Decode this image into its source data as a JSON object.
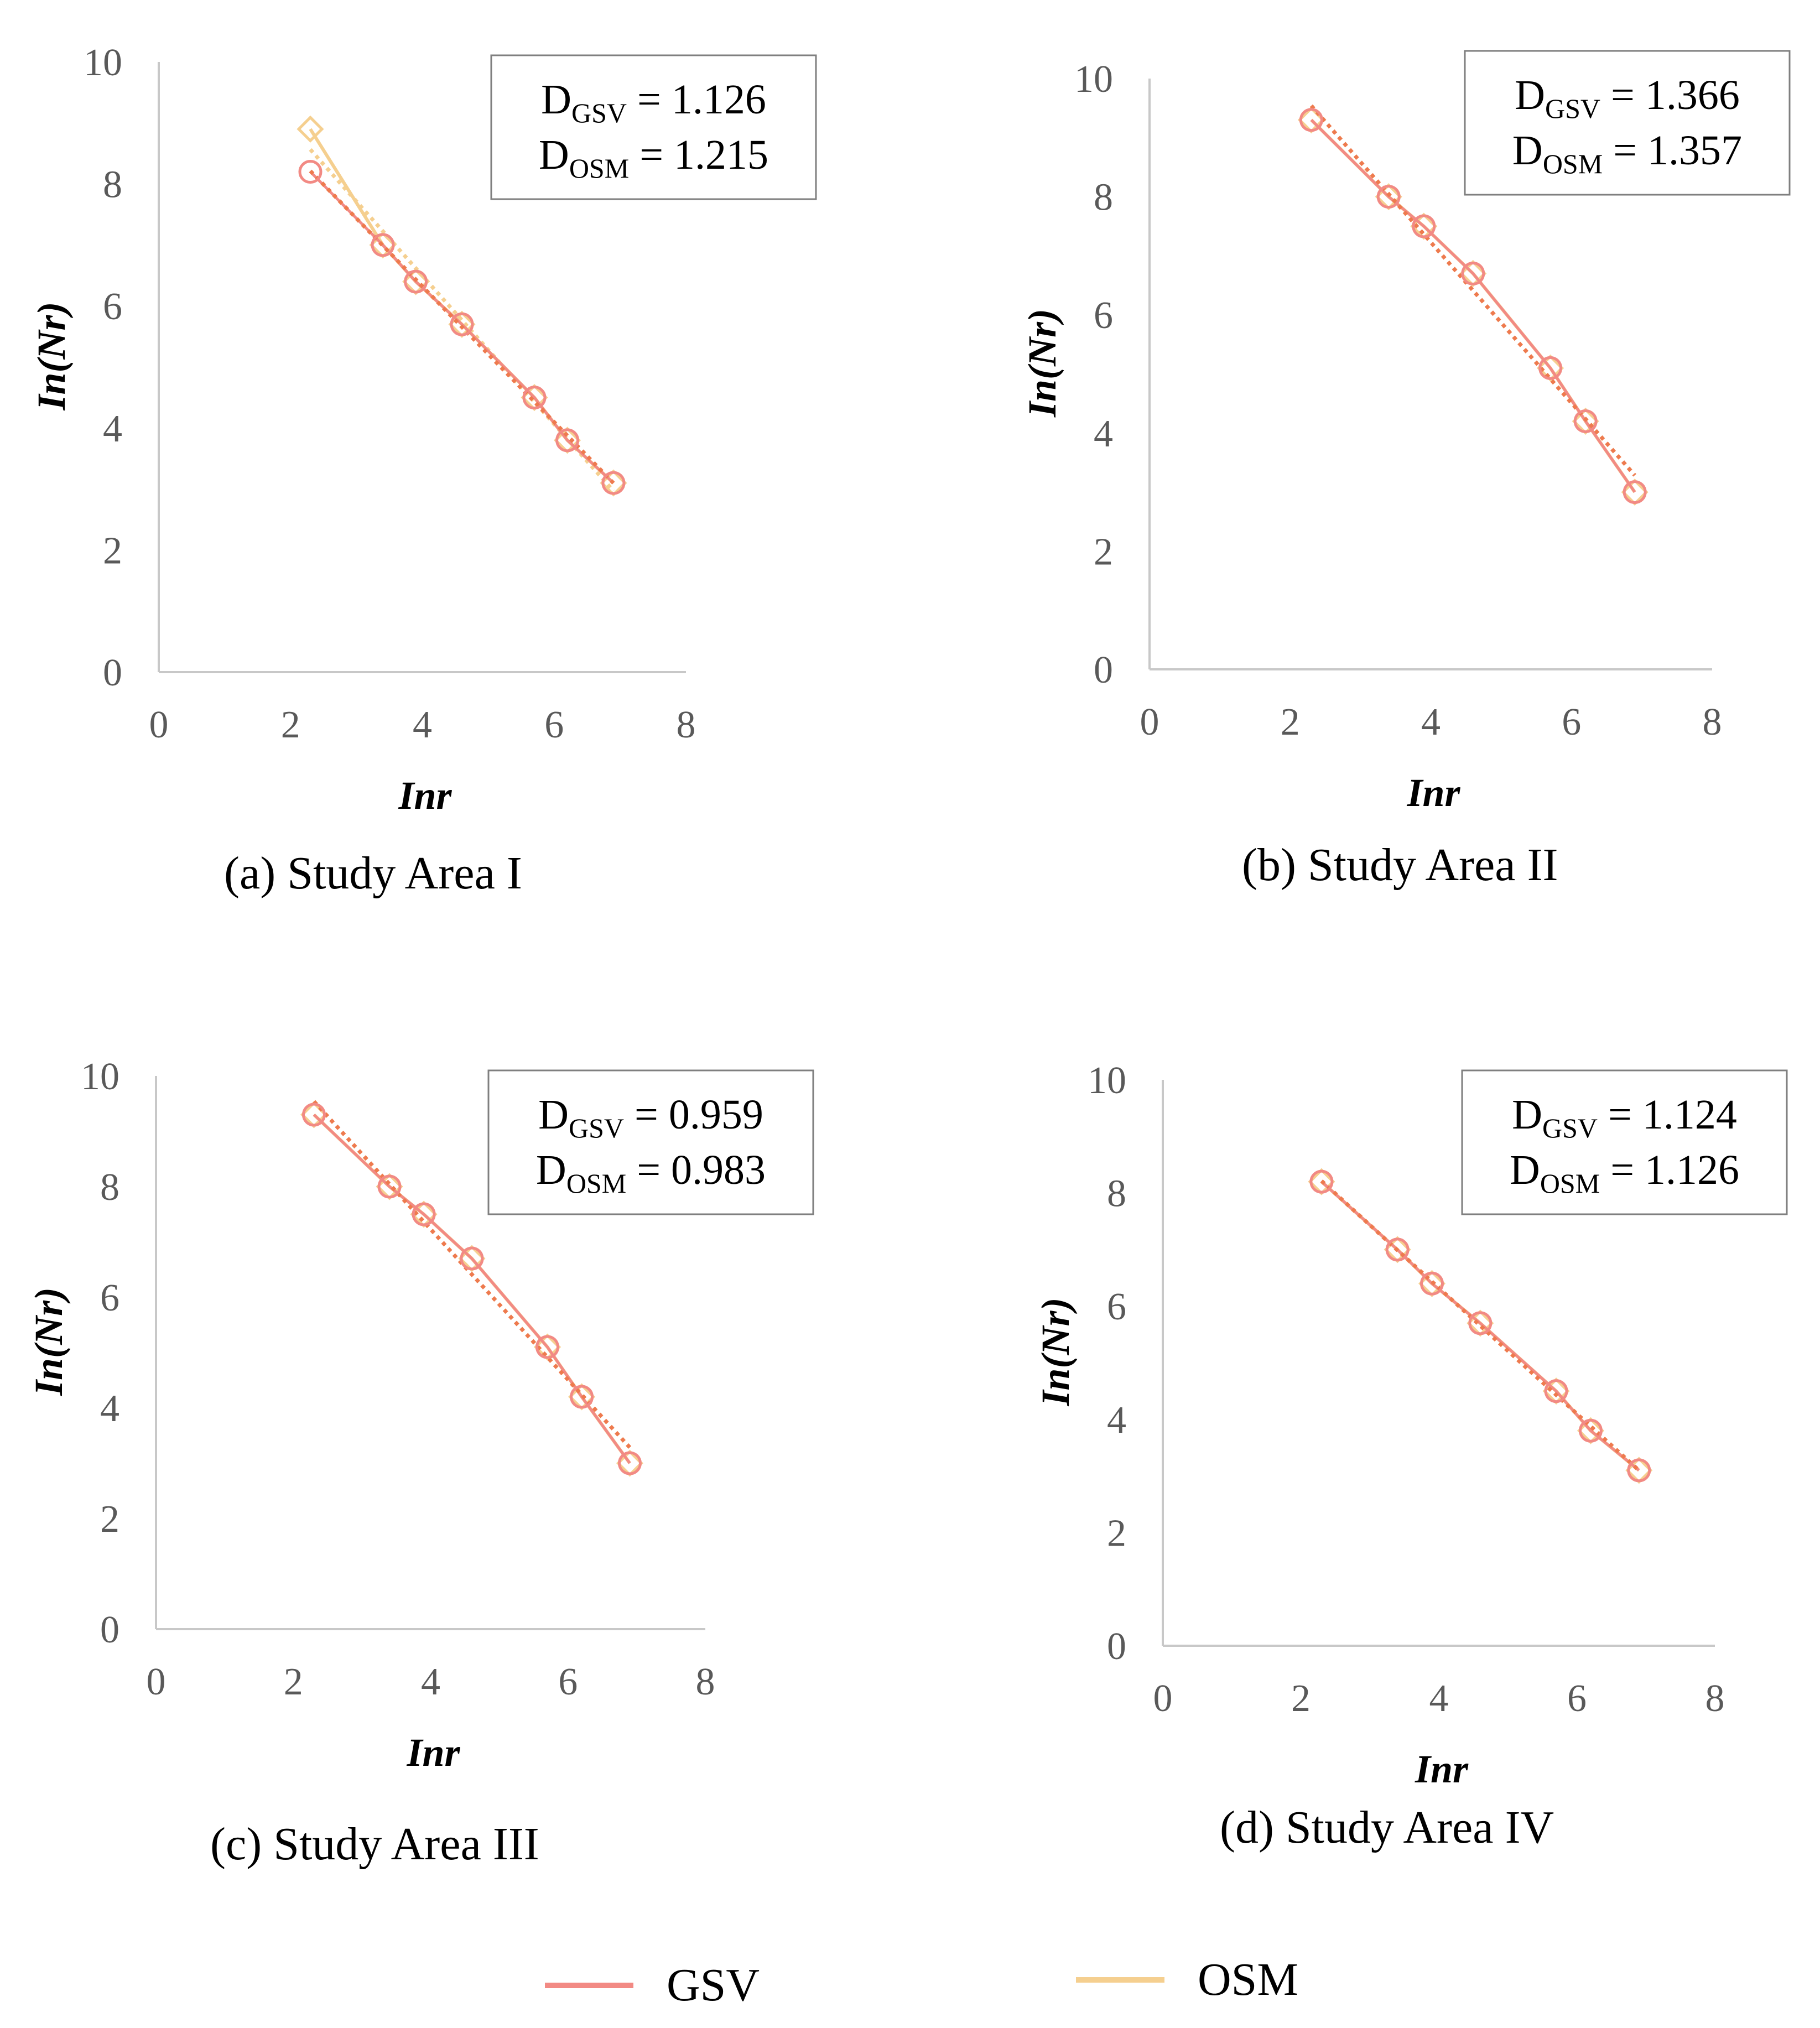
{
  "colors": {
    "gsv": "#f28a84",
    "osm": "#f5cf8f",
    "trend": "#ee7a4e",
    "axis": "#c8c8c8",
    "tick": "#595959",
    "box": "#7f7f7f"
  },
  "legend": {
    "items": [
      {
        "label": "GSV",
        "color": "#f28a84"
      },
      {
        "label": "OSM",
        "color": "#f5cf8f"
      }
    ]
  },
  "chart_data": [
    {
      "type": "scatter",
      "caption": "(a) Study Area I",
      "xlabel": "Inr",
      "ylabel": "In(Nr)",
      "xlim": [
        0,
        8
      ],
      "ylim": [
        0,
        10
      ],
      "xticks": [
        "0",
        "2",
        "4",
        "6",
        "8"
      ],
      "yticks": [
        "0",
        "2",
        "4",
        "6",
        "8",
        "10"
      ],
      "annotation": {
        "gsv": "D_GSV = 1.126",
        "osm": "D_OSM = 1.215",
        "gsv_parts": [
          "D",
          "GSV",
          " = 1.126"
        ],
        "osm_parts": [
          "D",
          "OSM",
          " = 1.215"
        ]
      },
      "series": [
        {
          "name": "GSV",
          "marker": "circle",
          "x": [
            2.3,
            3.4,
            3.9,
            4.6,
            5.7,
            6.2,
            6.9
          ],
          "y": [
            8.2,
            7.0,
            6.4,
            5.7,
            4.5,
            3.8,
            3.1
          ]
        },
        {
          "name": "OSM",
          "marker": "diamond",
          "x": [
            2.3,
            3.4,
            3.9,
            4.6,
            5.7,
            6.2,
            6.9
          ],
          "y": [
            8.9,
            7.0,
            6.4,
            5.7,
            4.5,
            3.8,
            3.1
          ]
        }
      ]
    },
    {
      "type": "scatter",
      "caption": "(b)  Study Area II",
      "xlabel": "Inr",
      "ylabel": "In(Nr)",
      "xlim": [
        0,
        8
      ],
      "ylim": [
        0,
        10
      ],
      "xticks": [
        "0",
        "2",
        "4",
        "6",
        "8"
      ],
      "yticks": [
        "0",
        "2",
        "4",
        "6",
        "8",
        "10"
      ],
      "annotation": {
        "gsv": "D_GSV = 1.366",
        "osm": "D_OSM = 1.357",
        "gsv_parts": [
          "D",
          "GSV",
          " = 1.366"
        ],
        "osm_parts": [
          "D",
          "OSM",
          " = 1.357"
        ]
      },
      "series": [
        {
          "name": "GSV",
          "marker": "circle",
          "x": [
            2.3,
            3.4,
            3.9,
            4.6,
            5.7,
            6.2,
            6.9
          ],
          "y": [
            9.3,
            8.0,
            7.5,
            6.7,
            5.1,
            4.2,
            3.0
          ]
        },
        {
          "name": "OSM",
          "marker": "diamond",
          "x": [
            2.3,
            3.4,
            3.9,
            4.6,
            5.7,
            6.2,
            6.9
          ],
          "y": [
            9.3,
            8.0,
            7.5,
            6.7,
            5.1,
            4.2,
            3.0
          ]
        }
      ]
    },
    {
      "type": "scatter",
      "caption": "(c)  Study Area III",
      "xlabel": "Inr",
      "ylabel": "In(Nr)",
      "xlim": [
        0,
        8
      ],
      "ylim": [
        0,
        10
      ],
      "xticks": [
        "0",
        "2",
        "4",
        "6",
        "8"
      ],
      "yticks": [
        "0",
        "2",
        "4",
        "6",
        "8",
        "10"
      ],
      "annotation": {
        "gsv": "D_GSV = 0.959",
        "osm": "D_OSM = 0.983",
        "gsv_parts": [
          "D",
          "GSV",
          " = 0.959"
        ],
        "osm_parts": [
          "D",
          "OSM",
          " = 0.983"
        ]
      },
      "series": [
        {
          "name": "GSV",
          "marker": "circle",
          "x": [
            2.3,
            3.4,
            3.9,
            4.6,
            5.7,
            6.2,
            6.9
          ],
          "y": [
            9.3,
            8.0,
            7.5,
            6.7,
            5.1,
            4.2,
            3.0
          ]
        },
        {
          "name": "OSM",
          "marker": "diamond",
          "x": [
            2.3,
            3.4,
            3.9,
            4.6,
            5.7,
            6.2,
            6.9
          ],
          "y": [
            9.3,
            8.0,
            7.5,
            6.7,
            5.1,
            4.2,
            3.0
          ]
        }
      ]
    },
    {
      "type": "scatter",
      "caption": "(d)  Study Area IV",
      "xlabel": "Inr",
      "ylabel": "In(Nr)",
      "xlim": [
        0,
        8
      ],
      "ylim": [
        0,
        10
      ],
      "xticks": [
        "0",
        "2",
        "4",
        "6",
        "8"
      ],
      "yticks": [
        "0",
        "2",
        "4",
        "6",
        "8",
        "10"
      ],
      "annotation": {
        "gsv": "D_GSV = 1.124",
        "osm": "D_OSM = 1.126",
        "gsv_parts": [
          "D",
          "GSV",
          " = 1.124"
        ],
        "osm_parts": [
          "D",
          "OSM",
          " = 1.126"
        ]
      },
      "series": [
        {
          "name": "GSV",
          "marker": "circle",
          "x": [
            2.3,
            3.4,
            3.9,
            4.6,
            5.7,
            6.2,
            6.9
          ],
          "y": [
            8.2,
            7.0,
            6.4,
            5.7,
            4.5,
            3.8,
            3.1
          ]
        },
        {
          "name": "OSM",
          "marker": "diamond",
          "x": [
            2.3,
            3.4,
            3.9,
            4.6,
            5.7,
            6.2,
            6.9
          ],
          "y": [
            8.2,
            7.0,
            6.4,
            5.7,
            4.5,
            3.8,
            3.1
          ]
        }
      ]
    }
  ]
}
